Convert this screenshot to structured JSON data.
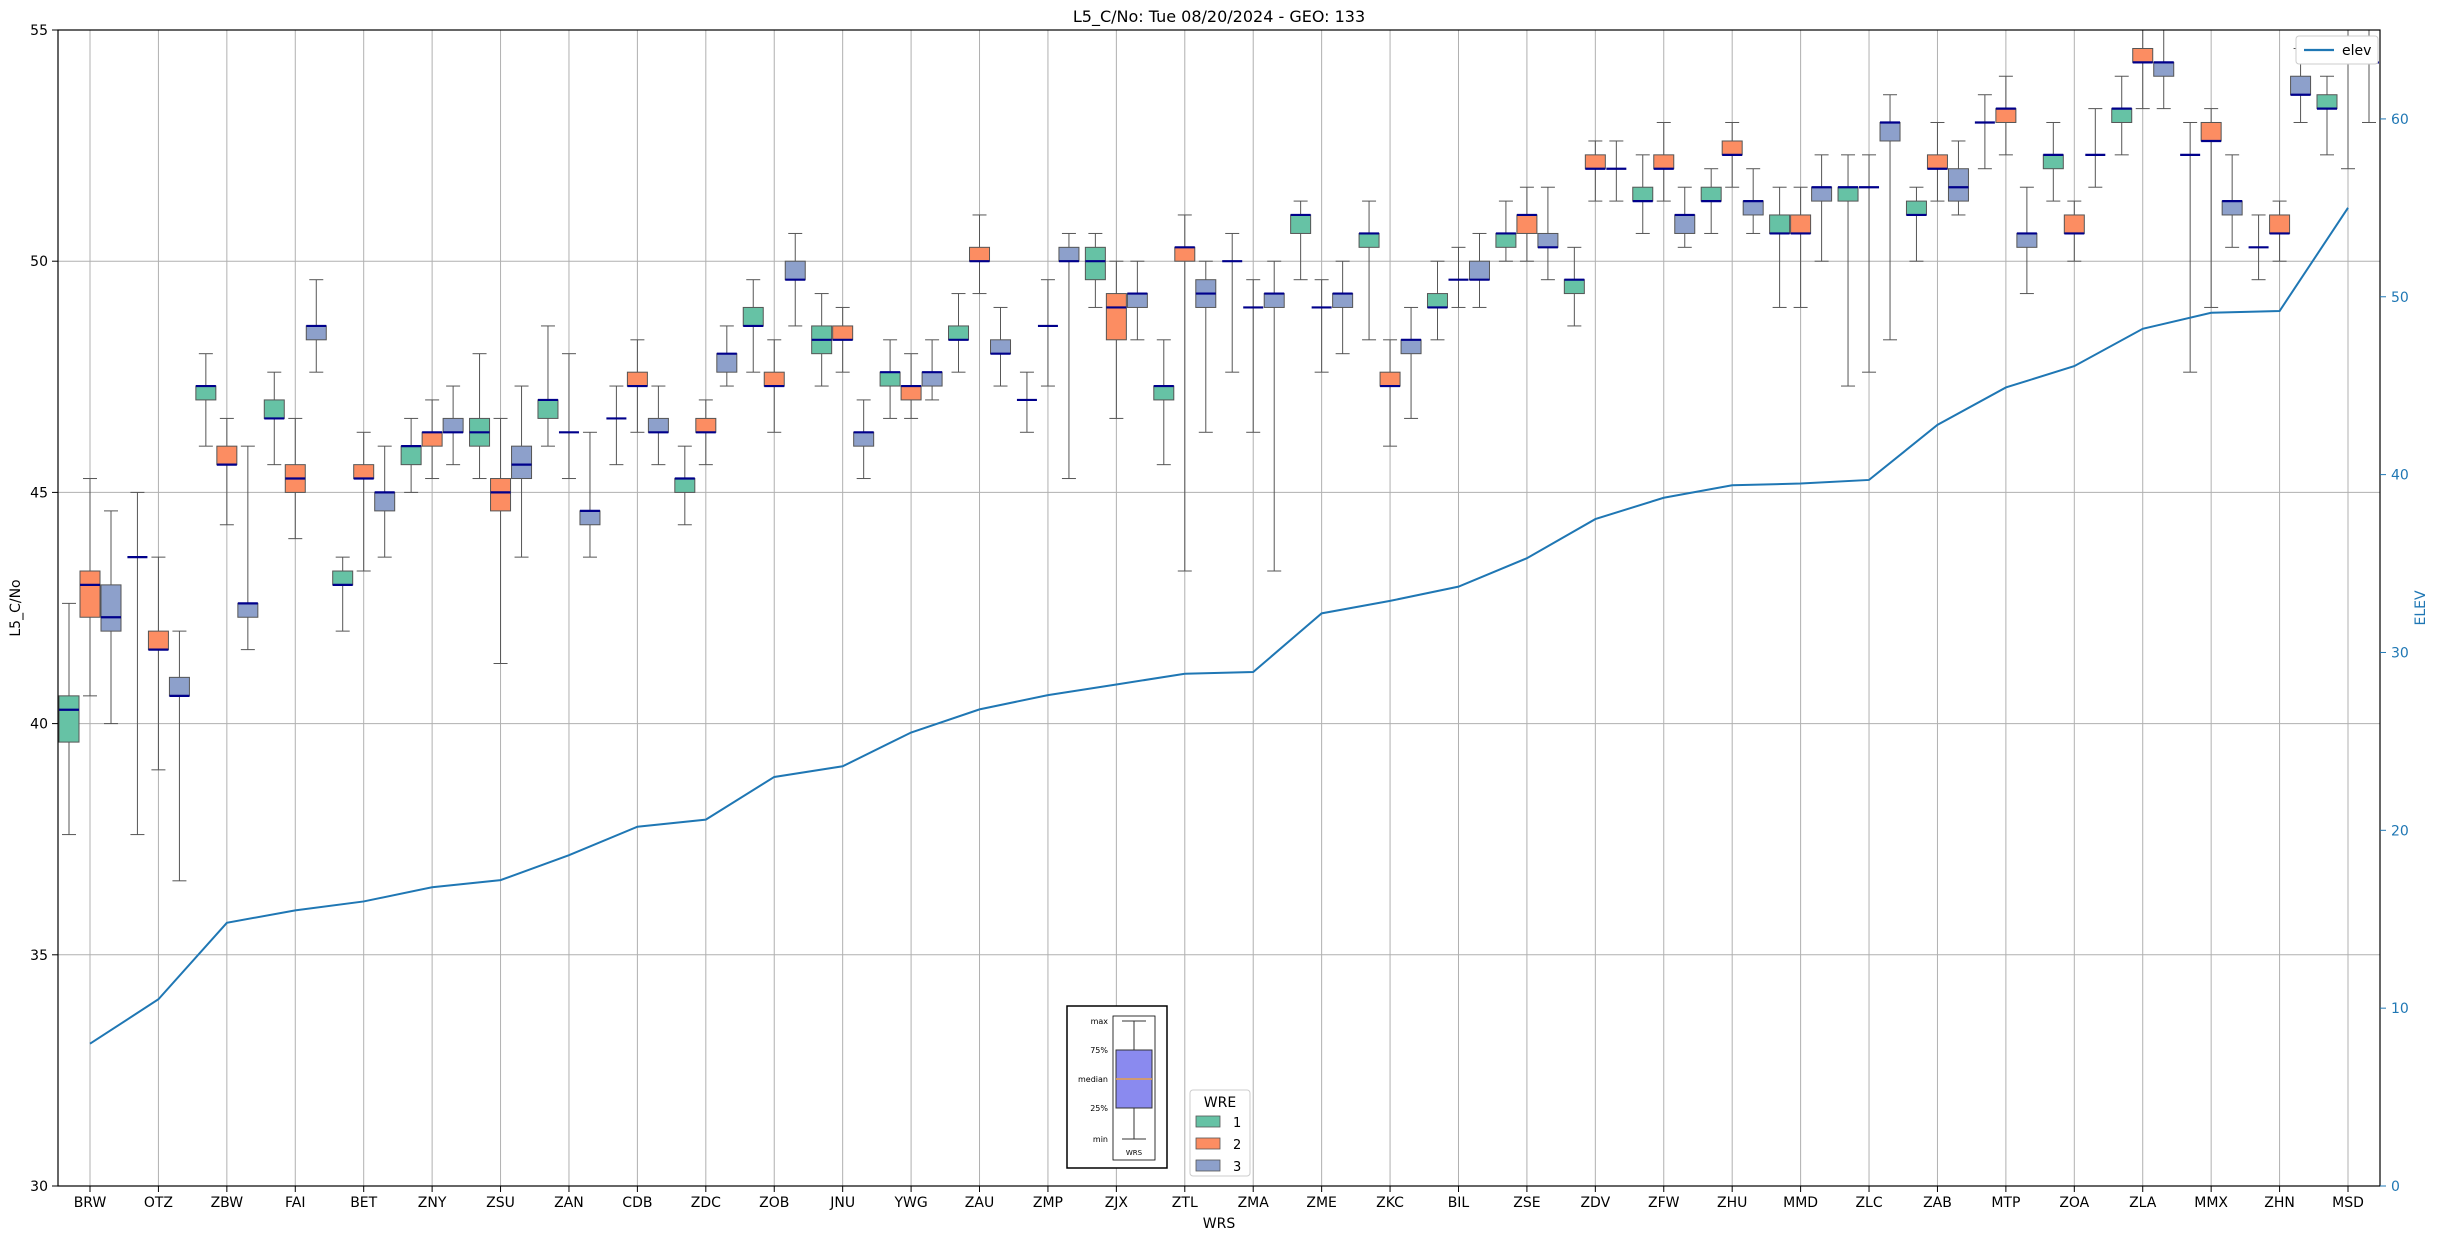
{
  "chart_data": {
    "type": "boxplot",
    "title": "L5_C/No: Tue 08/20/2024 - GEO: 133",
    "xlabel": "WRS",
    "ylabel": "L5_C/No",
    "y2label": "ELEV",
    "ylim": [
      30,
      55
    ],
    "y2lim": [
      0,
      65
    ],
    "yticks": [
      30,
      35,
      40,
      45,
      50,
      55
    ],
    "y2ticks": [
      0,
      10,
      20,
      30,
      40,
      50,
      60
    ],
    "grid": true,
    "categories": [
      "BRW",
      "OTZ",
      "ZBW",
      "FAI",
      "BET",
      "ZNY",
      "ZSU",
      "ZAN",
      "CDB",
      "ZDC",
      "ZOB",
      "JNU",
      "YWG",
      "ZAU",
      "ZMP",
      "ZJX",
      "ZTL",
      "ZMA",
      "ZME",
      "ZKC",
      "BIL",
      "ZSE",
      "ZDV",
      "ZFW",
      "ZHU",
      "MMD",
      "ZLC",
      "ZAB",
      "MTP",
      "ZOA",
      "ZLA",
      "MMX",
      "ZHN",
      "MSD"
    ],
    "series_colors": {
      "1": "#66c2a5",
      "2": "#fc8d62",
      "3": "#8da0cb"
    },
    "median_color": "#00008b",
    "line_series": {
      "name": "elev",
      "color": "#1f77b4",
      "values": [
        8,
        10.5,
        14.8,
        15.5,
        16,
        16.8,
        17.2,
        18.6,
        20.2,
        20.6,
        23,
        23.6,
        25.5,
        26.8,
        27.6,
        28.2,
        28.8,
        28.9,
        32.2,
        32.9,
        33.7,
        35.3,
        37.5,
        38.7,
        39.4,
        39.5,
        39.7,
        42.8,
        44.9,
        46.1,
        48.2,
        49.1,
        49.2,
        55
      ]
    },
    "boxes": [
      {
        "cat": "BRW",
        "wre": 1,
        "min": 37.6,
        "q1": 39.6,
        "med": 40.3,
        "q3": 40.6,
        "max": 42.6
      },
      {
        "cat": "BRW",
        "wre": 2,
        "min": 40.6,
        "q1": 42.3,
        "med": 43.0,
        "q3": 43.3,
        "max": 45.3
      },
      {
        "cat": "BRW",
        "wre": 3,
        "min": 40.0,
        "q1": 42.0,
        "med": 42.3,
        "q3": 43.0,
        "max": 44.6
      },
      {
        "cat": "OTZ",
        "wre": 1,
        "min": 37.6,
        "q1": 43.6,
        "med": 43.6,
        "q3": 43.6,
        "max": 45.0
      },
      {
        "cat": "OTZ",
        "wre": 2,
        "min": 39.0,
        "q1": 41.6,
        "med": 41.6,
        "q3": 42.0,
        "max": 43.6
      },
      {
        "cat": "OTZ",
        "wre": 3,
        "min": 36.6,
        "q1": 40.6,
        "med": 40.6,
        "q3": 41.0,
        "max": 42.0
      },
      {
        "cat": "ZBW",
        "wre": 1,
        "min": 46.0,
        "q1": 47.0,
        "med": 47.3,
        "q3": 47.3,
        "max": 48.0
      },
      {
        "cat": "ZBW",
        "wre": 2,
        "min": 44.3,
        "q1": 45.6,
        "med": 45.6,
        "q3": 46.0,
        "max": 46.6
      },
      {
        "cat": "ZBW",
        "wre": 3,
        "min": 41.6,
        "q1": 42.3,
        "med": 42.6,
        "q3": 42.6,
        "max": 46.0
      },
      {
        "cat": "FAI",
        "wre": 1,
        "min": 45.6,
        "q1": 46.6,
        "med": 46.6,
        "q3": 47.0,
        "max": 47.6
      },
      {
        "cat": "FAI",
        "wre": 2,
        "min": 44.0,
        "q1": 45.0,
        "med": 45.3,
        "q3": 45.6,
        "max": 46.6
      },
      {
        "cat": "FAI",
        "wre": 3,
        "min": 47.6,
        "q1": 48.3,
        "med": 48.6,
        "q3": 48.6,
        "max": 49.6
      },
      {
        "cat": "BET",
        "wre": 1,
        "min": 42.0,
        "q1": 43.0,
        "med": 43.0,
        "q3": 43.3,
        "max": 43.6
      },
      {
        "cat": "BET",
        "wre": 2,
        "min": 43.3,
        "q1": 45.3,
        "med": 45.3,
        "q3": 45.6,
        "max": 46.3
      },
      {
        "cat": "BET",
        "wre": 3,
        "min": 43.6,
        "q1": 44.6,
        "med": 45.0,
        "q3": 45.0,
        "max": 46.0
      },
      {
        "cat": "ZNY",
        "wre": 1,
        "min": 45.0,
        "q1": 45.6,
        "med": 46.0,
        "q3": 46.0,
        "max": 46.6
      },
      {
        "cat": "ZNY",
        "wre": 2,
        "min": 45.3,
        "q1": 46.0,
        "med": 46.3,
        "q3": 46.3,
        "max": 47.0
      },
      {
        "cat": "ZNY",
        "wre": 3,
        "min": 45.6,
        "q1": 46.3,
        "med": 46.3,
        "q3": 46.6,
        "max": 47.3
      },
      {
        "cat": "ZSU",
        "wre": 1,
        "min": 45.3,
        "q1": 46.0,
        "med": 46.3,
        "q3": 46.6,
        "max": 48.0
      },
      {
        "cat": "ZSU",
        "wre": 2,
        "min": 41.3,
        "q1": 44.6,
        "med": 45.0,
        "q3": 45.3,
        "max": 46.6
      },
      {
        "cat": "ZSU",
        "wre": 3,
        "min": 43.6,
        "q1": 45.3,
        "med": 45.6,
        "q3": 46.0,
        "max": 47.3
      },
      {
        "cat": "ZAN",
        "wre": 1,
        "min": 46.0,
        "q1": 46.6,
        "med": 47.0,
        "q3": 47.0,
        "max": 48.6
      },
      {
        "cat": "ZAN",
        "wre": 2,
        "min": 45.3,
        "q1": 46.3,
        "med": 46.3,
        "q3": 46.3,
        "max": 48.0
      },
      {
        "cat": "ZAN",
        "wre": 3,
        "min": 43.6,
        "q1": 44.3,
        "med": 44.6,
        "q3": 44.6,
        "max": 46.3
      },
      {
        "cat": "CDB",
        "wre": 1,
        "min": 45.6,
        "q1": 46.6,
        "med": 46.6,
        "q3": 46.6,
        "max": 47.3
      },
      {
        "cat": "CDB",
        "wre": 2,
        "min": 46.3,
        "q1": 47.3,
        "med": 47.3,
        "q3": 47.6,
        "max": 48.3
      },
      {
        "cat": "CDB",
        "wre": 3,
        "min": 45.6,
        "q1": 46.3,
        "med": 46.3,
        "q3": 46.6,
        "max": 47.3
      },
      {
        "cat": "ZDC",
        "wre": 1,
        "min": 44.3,
        "q1": 45.0,
        "med": 45.3,
        "q3": 45.3,
        "max": 46.0
      },
      {
        "cat": "ZDC",
        "wre": 2,
        "min": 45.6,
        "q1": 46.3,
        "med": 46.3,
        "q3": 46.6,
        "max": 47.0
      },
      {
        "cat": "ZDC",
        "wre": 3,
        "min": 47.3,
        "q1": 47.6,
        "med": 48.0,
        "q3": 48.0,
        "max": 48.6
      },
      {
        "cat": "ZOB",
        "wre": 1,
        "min": 47.6,
        "q1": 48.6,
        "med": 48.6,
        "q3": 49.0,
        "max": 49.6
      },
      {
        "cat": "ZOB",
        "wre": 2,
        "min": 46.3,
        "q1": 47.3,
        "med": 47.3,
        "q3": 47.6,
        "max": 48.3
      },
      {
        "cat": "ZOB",
        "wre": 3,
        "min": 48.6,
        "q1": 49.6,
        "med": 49.6,
        "q3": 50.0,
        "max": 50.6
      },
      {
        "cat": "JNU",
        "wre": 1,
        "min": 47.3,
        "q1": 48.0,
        "med": 48.3,
        "q3": 48.6,
        "max": 49.3
      },
      {
        "cat": "JNU",
        "wre": 2,
        "min": 47.6,
        "q1": 48.3,
        "med": 48.3,
        "q3": 48.6,
        "max": 49.0
      },
      {
        "cat": "JNU",
        "wre": 3,
        "min": 45.3,
        "q1": 46.0,
        "med": 46.3,
        "q3": 46.3,
        "max": 47.0
      },
      {
        "cat": "YWG",
        "wre": 1,
        "min": 46.6,
        "q1": 47.3,
        "med": 47.6,
        "q3": 47.6,
        "max": 48.3
      },
      {
        "cat": "YWG",
        "wre": 2,
        "min": 46.6,
        "q1": 47.0,
        "med": 47.3,
        "q3": 47.3,
        "max": 48.0
      },
      {
        "cat": "YWG",
        "wre": 3,
        "min": 47.0,
        "q1": 47.3,
        "med": 47.6,
        "q3": 47.6,
        "max": 48.3
      },
      {
        "cat": "ZAU",
        "wre": 1,
        "min": 47.6,
        "q1": 48.3,
        "med": 48.3,
        "q3": 48.6,
        "max": 49.3
      },
      {
        "cat": "ZAU",
        "wre": 2,
        "min": 49.3,
        "q1": 50.0,
        "med": 50.0,
        "q3": 50.3,
        "max": 51.0
      },
      {
        "cat": "ZAU",
        "wre": 3,
        "min": 47.3,
        "q1": 48.0,
        "med": 48.0,
        "q3": 48.3,
        "max": 49.0
      },
      {
        "cat": "ZMP",
        "wre": 1,
        "min": 46.3,
        "q1": 47.0,
        "med": 47.0,
        "q3": 47.0,
        "max": 47.6
      },
      {
        "cat": "ZMP",
        "wre": 2,
        "min": 47.3,
        "q1": 48.6,
        "med": 48.6,
        "q3": 48.6,
        "max": 49.6
      },
      {
        "cat": "ZMP",
        "wre": 3,
        "min": 45.3,
        "q1": 50.0,
        "med": 50.0,
        "q3": 50.3,
        "max": 50.6
      },
      {
        "cat": "ZJX",
        "wre": 1,
        "min": 49.0,
        "q1": 49.6,
        "med": 50.0,
        "q3": 50.3,
        "max": 50.6
      },
      {
        "cat": "ZJX",
        "wre": 2,
        "min": 46.6,
        "q1": 48.3,
        "med": 49.0,
        "q3": 49.3,
        "max": 50.0
      },
      {
        "cat": "ZJX",
        "wre": 3,
        "min": 48.3,
        "q1": 49.0,
        "med": 49.3,
        "q3": 49.3,
        "max": 50.0
      },
      {
        "cat": "ZTL",
        "wre": 1,
        "min": 45.6,
        "q1": 47.0,
        "med": 47.3,
        "q3": 47.3,
        "max": 48.3
      },
      {
        "cat": "ZTL",
        "wre": 2,
        "min": 43.3,
        "q1": 50.0,
        "med": 50.3,
        "q3": 50.3,
        "max": 51.0
      },
      {
        "cat": "ZTL",
        "wre": 3,
        "min": 46.3,
        "q1": 49.0,
        "med": 49.3,
        "q3": 49.6,
        "max": 50.0
      },
      {
        "cat": "ZMA",
        "wre": 1,
        "min": 47.6,
        "q1": 50.0,
        "med": 50.0,
        "q3": 50.0,
        "max": 50.6
      },
      {
        "cat": "ZMA",
        "wre": 2,
        "min": 46.3,
        "q1": 49.0,
        "med": 49.0,
        "q3": 49.0,
        "max": 49.6
      },
      {
        "cat": "ZMA",
        "wre": 3,
        "min": 43.3,
        "q1": 49.0,
        "med": 49.3,
        "q3": 49.3,
        "max": 50.0
      },
      {
        "cat": "ZME",
        "wre": 1,
        "min": 49.6,
        "q1": 50.6,
        "med": 51.0,
        "q3": 51.0,
        "max": 51.3
      },
      {
        "cat": "ZME",
        "wre": 2,
        "min": 47.6,
        "q1": 49.0,
        "med": 49.0,
        "q3": 49.0,
        "max": 49.6
      },
      {
        "cat": "ZME",
        "wre": 3,
        "min": 48.0,
        "q1": 49.0,
        "med": 49.3,
        "q3": 49.3,
        "max": 50.0
      },
      {
        "cat": "ZKC",
        "wre": 1,
        "min": 48.3,
        "q1": 50.3,
        "med": 50.6,
        "q3": 50.6,
        "max": 51.3
      },
      {
        "cat": "ZKC",
        "wre": 2,
        "min": 46.0,
        "q1": 47.3,
        "med": 47.3,
        "q3": 47.6,
        "max": 48.3
      },
      {
        "cat": "ZKC",
        "wre": 3,
        "min": 46.6,
        "q1": 48.0,
        "med": 48.3,
        "q3": 48.3,
        "max": 49.0
      },
      {
        "cat": "BIL",
        "wre": 1,
        "min": 48.3,
        "q1": 49.0,
        "med": 49.0,
        "q3": 49.3,
        "max": 50.0
      },
      {
        "cat": "BIL",
        "wre": 2,
        "min": 49.0,
        "q1": 49.6,
        "med": 49.6,
        "q3": 49.6,
        "max": 50.3
      },
      {
        "cat": "BIL",
        "wre": 3,
        "min": 49.0,
        "q1": 49.6,
        "med": 49.6,
        "q3": 50.0,
        "max": 50.6
      },
      {
        "cat": "ZSE",
        "wre": 1,
        "min": 50.0,
        "q1": 50.3,
        "med": 50.6,
        "q3": 50.6,
        "max": 51.3
      },
      {
        "cat": "ZSE",
        "wre": 2,
        "min": 50.0,
        "q1": 50.6,
        "med": 51.0,
        "q3": 51.0,
        "max": 51.6
      },
      {
        "cat": "ZSE",
        "wre": 3,
        "min": 49.6,
        "q1": 50.3,
        "med": 50.3,
        "q3": 50.6,
        "max": 51.6
      },
      {
        "cat": "ZDV",
        "wre": 1,
        "min": 48.6,
        "q1": 49.3,
        "med": 49.6,
        "q3": 49.6,
        "max": 50.3
      },
      {
        "cat": "ZDV",
        "wre": 2,
        "min": 51.3,
        "q1": 52.0,
        "med": 52.0,
        "q3": 52.3,
        "max": 52.6
      },
      {
        "cat": "ZDV",
        "wre": 3,
        "min": 51.3,
        "q1": 52.0,
        "med": 52.0,
        "q3": 52.0,
        "max": 52.6
      },
      {
        "cat": "ZFW",
        "wre": 1,
        "min": 50.6,
        "q1": 51.3,
        "med": 51.3,
        "q3": 51.6,
        "max": 52.3
      },
      {
        "cat": "ZFW",
        "wre": 2,
        "min": 51.3,
        "q1": 52.0,
        "med": 52.0,
        "q3": 52.3,
        "max": 53.0
      },
      {
        "cat": "ZFW",
        "wre": 3,
        "min": 50.3,
        "q1": 50.6,
        "med": 51.0,
        "q3": 51.0,
        "max": 51.6
      },
      {
        "cat": "ZHU",
        "wre": 1,
        "min": 50.6,
        "q1": 51.3,
        "med": 51.3,
        "q3": 51.6,
        "max": 52.0
      },
      {
        "cat": "ZHU",
        "wre": 2,
        "min": 51.6,
        "q1": 52.3,
        "med": 52.3,
        "q3": 52.6,
        "max": 53.0
      },
      {
        "cat": "ZHU",
        "wre": 3,
        "min": 50.6,
        "q1": 51.0,
        "med": 51.3,
        "q3": 51.3,
        "max": 52.0
      },
      {
        "cat": "MMD",
        "wre": 1,
        "min": 49.0,
        "q1": 50.6,
        "med": 50.6,
        "q3": 51.0,
        "max": 51.6
      },
      {
        "cat": "MMD",
        "wre": 2,
        "min": 49.0,
        "q1": 50.6,
        "med": 50.6,
        "q3": 51.0,
        "max": 51.6
      },
      {
        "cat": "MMD",
        "wre": 3,
        "min": 50.0,
        "q1": 51.3,
        "med": 51.6,
        "q3": 51.6,
        "max": 52.3
      },
      {
        "cat": "ZLC",
        "wre": 1,
        "min": 47.3,
        "q1": 51.3,
        "med": 51.6,
        "q3": 51.6,
        "max": 52.3
      },
      {
        "cat": "ZLC",
        "wre": 2,
        "min": 47.6,
        "q1": 51.6,
        "med": 51.6,
        "q3": 51.6,
        "max": 52.3
      },
      {
        "cat": "ZLC",
        "wre": 3,
        "min": 48.3,
        "q1": 52.6,
        "med": 53.0,
        "q3": 53.0,
        "max": 53.6
      },
      {
        "cat": "ZAB",
        "wre": 1,
        "min": 50.0,
        "q1": 51.0,
        "med": 51.0,
        "q3": 51.3,
        "max": 51.6
      },
      {
        "cat": "ZAB",
        "wre": 2,
        "min": 51.3,
        "q1": 52.0,
        "med": 52.0,
        "q3": 52.3,
        "max": 53.0
      },
      {
        "cat": "ZAB",
        "wre": 3,
        "min": 51.0,
        "q1": 51.3,
        "med": 51.6,
        "q3": 52.0,
        "max": 52.6
      },
      {
        "cat": "MTP",
        "wre": 1,
        "min": 52.0,
        "q1": 53.0,
        "med": 53.0,
        "q3": 53.0,
        "max": 53.6
      },
      {
        "cat": "MTP",
        "wre": 2,
        "min": 52.3,
        "q1": 53.0,
        "med": 53.3,
        "q3": 53.3,
        "max": 54.0
      },
      {
        "cat": "MTP",
        "wre": 3,
        "min": 49.3,
        "q1": 50.3,
        "med": 50.6,
        "q3": 50.6,
        "max": 51.6
      },
      {
        "cat": "ZOA",
        "wre": 1,
        "min": 51.3,
        "q1": 52.0,
        "med": 52.3,
        "q3": 52.3,
        "max": 53.0
      },
      {
        "cat": "ZOA",
        "wre": 2,
        "min": 50.0,
        "q1": 50.6,
        "med": 50.6,
        "q3": 51.0,
        "max": 51.3
      },
      {
        "cat": "ZOA",
        "wre": 3,
        "min": 51.6,
        "q1": 52.3,
        "med": 52.3,
        "q3": 52.3,
        "max": 53.3
      },
      {
        "cat": "ZLA",
        "wre": 1,
        "min": 52.3,
        "q1": 53.0,
        "med": 53.3,
        "q3": 53.3,
        "max": 54.0
      },
      {
        "cat": "ZLA",
        "wre": 2,
        "min": 53.3,
        "q1": 54.3,
        "med": 54.3,
        "q3": 54.6,
        "max": 55.0
      },
      {
        "cat": "ZLA",
        "wre": 3,
        "min": 53.3,
        "q1": 54.0,
        "med": 54.3,
        "q3": 54.3,
        "max": 55.0
      },
      {
        "cat": "MMX",
        "wre": 1,
        "min": 47.6,
        "q1": 52.3,
        "med": 52.3,
        "q3": 52.3,
        "max": 53.0
      },
      {
        "cat": "MMX",
        "wre": 2,
        "min": 49.0,
        "q1": 52.6,
        "med": 52.6,
        "q3": 53.0,
        "max": 53.3
      },
      {
        "cat": "MMX",
        "wre": 3,
        "min": 50.3,
        "q1": 51.0,
        "med": 51.3,
        "q3": 51.3,
        "max": 52.3
      },
      {
        "cat": "ZHN",
        "wre": 1,
        "min": 49.6,
        "q1": 50.3,
        "med": 50.3,
        "q3": 50.3,
        "max": 51.0
      },
      {
        "cat": "ZHN",
        "wre": 2,
        "min": 50.0,
        "q1": 50.6,
        "med": 50.6,
        "q3": 51.0,
        "max": 51.3
      },
      {
        "cat": "ZHN",
        "wre": 3,
        "min": 53.0,
        "q1": 53.6,
        "med": 53.6,
        "q3": 54.0,
        "max": 54.6
      },
      {
        "cat": "MSD",
        "wre": 1,
        "min": 52.3,
        "q1": 53.3,
        "med": 53.3,
        "q3": 53.6,
        "max": 54.0
      },
      {
        "cat": "MSD",
        "wre": 2,
        "min": 52.0,
        "q1": 54.3,
        "med": 54.3,
        "q3": 54.3,
        "max": 55.0
      },
      {
        "cat": "MSD",
        "wre": 3,
        "min": 53.0,
        "q1": 54.3,
        "med": 54.3,
        "q3": 54.3,
        "max": 55.0
      }
    ],
    "legend": {
      "title": "WRE",
      "entries": [
        "1",
        "2",
        "3"
      ],
      "placement": "bottom-center"
    },
    "line_legend": {
      "label": "elev",
      "placement": "top-right"
    },
    "key_inset": {
      "labels": [
        "max",
        "75%",
        "median",
        "25%",
        "min"
      ],
      "caption": "WRS",
      "placement": "bottom-center"
    }
  }
}
